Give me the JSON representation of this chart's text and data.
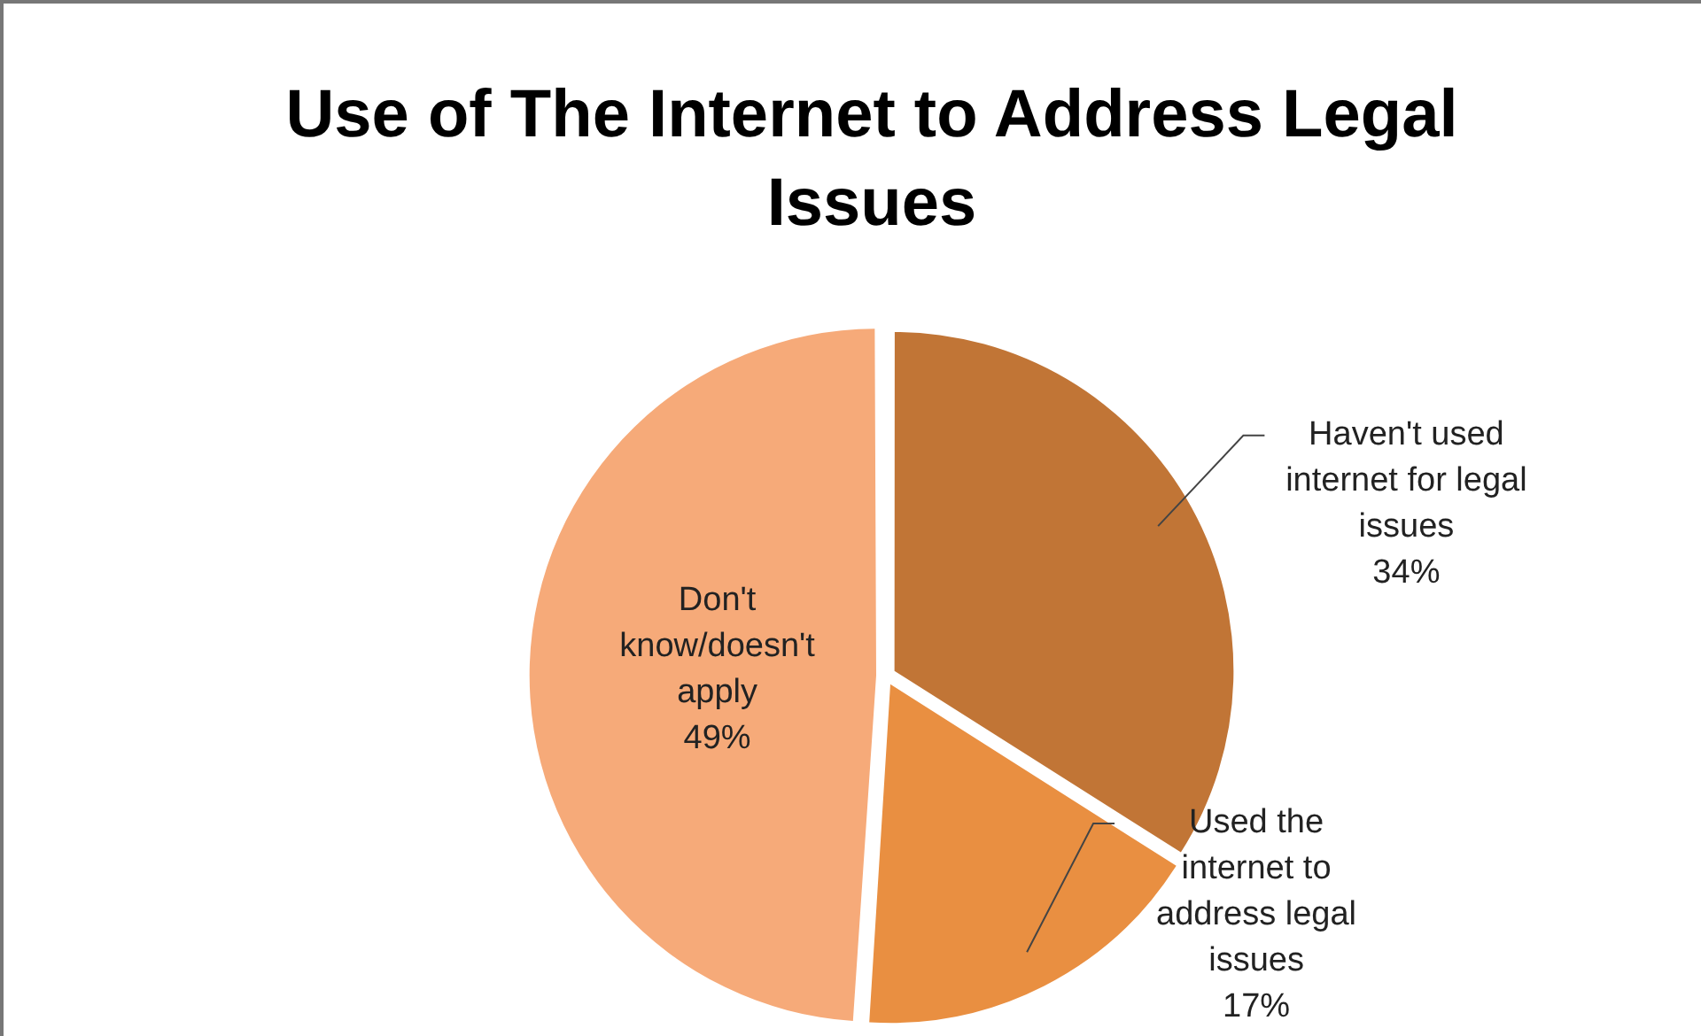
{
  "chart_data": {
    "type": "pie",
    "title": "Use of The Internet to Address Legal Issues",
    "categories": [
      "Haven't used internet for legal issues",
      "Used the internet to address legal issues",
      "Don't know/doesn't apply"
    ],
    "values": [
      34,
      17,
      49
    ],
    "colors": [
      "#c17536",
      "#e98f41",
      "#f6aa79"
    ],
    "value_labels": [
      "34%",
      "17%",
      "49%"
    ],
    "legend": false
  }
}
